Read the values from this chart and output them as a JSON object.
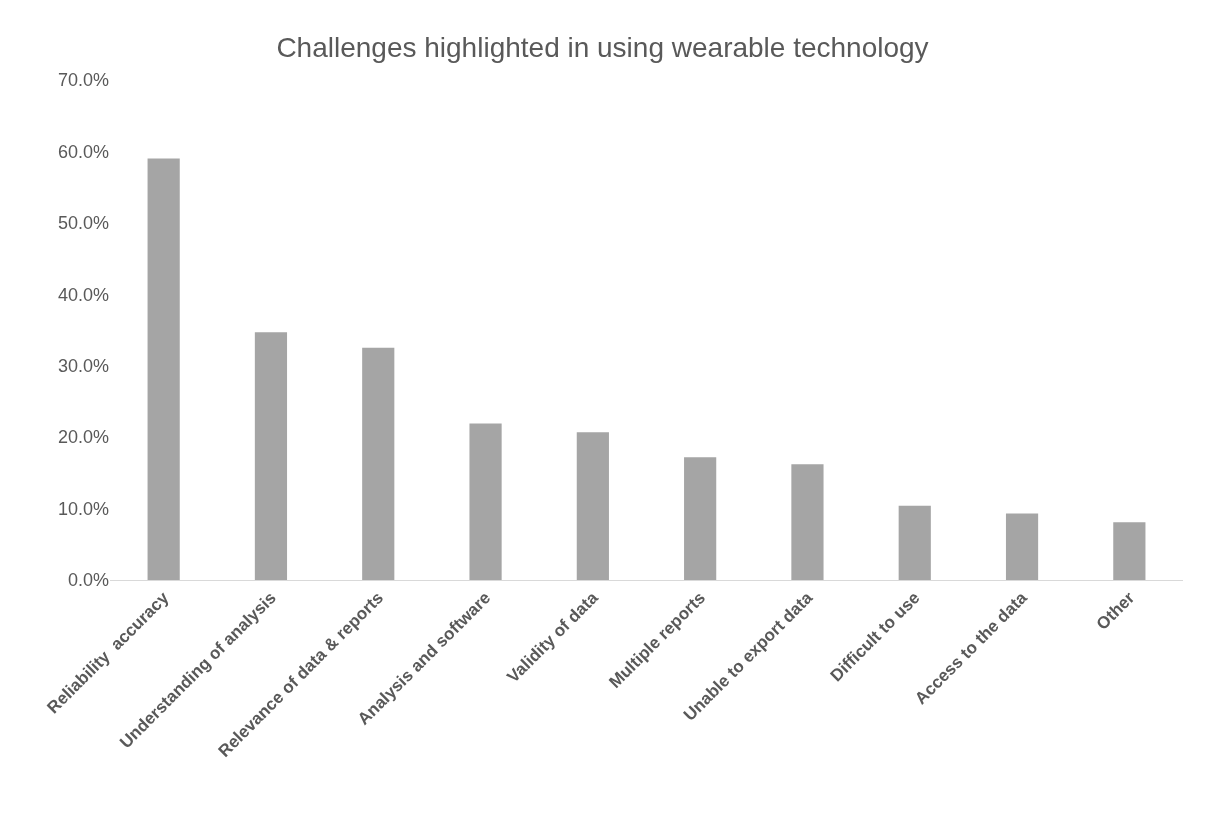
{
  "chart_data": {
    "type": "bar",
    "title": "Challenges highlighted in using wearable technology",
    "categories": [
      "Reliability  accuracy",
      "Understanding of analysis",
      "Relevance of data & reports",
      "Analysis and software",
      "Validity of data",
      "Multiple reports",
      "Unable to export data",
      "Difficult to use",
      "Access to the data",
      "Other"
    ],
    "values": [
      59.0,
      34.7,
      32.5,
      21.9,
      20.7,
      17.2,
      16.2,
      10.4,
      9.3,
      8.1
    ],
    "color": "#a5a5a5",
    "ylim": [
      0,
      70
    ],
    "yticks": [
      {
        "value": 0,
        "label": "0.0%"
      },
      {
        "value": 10,
        "label": "10.0%"
      },
      {
        "value": 20,
        "label": "20.0%"
      },
      {
        "value": 30,
        "label": "30.0%"
      },
      {
        "value": 40,
        "label": "40.0%"
      },
      {
        "value": 50,
        "label": "50.0%"
      },
      {
        "value": 60,
        "label": "60.0%"
      },
      {
        "value": 70,
        "label": "70.0%"
      }
    ],
    "grid": false
  }
}
